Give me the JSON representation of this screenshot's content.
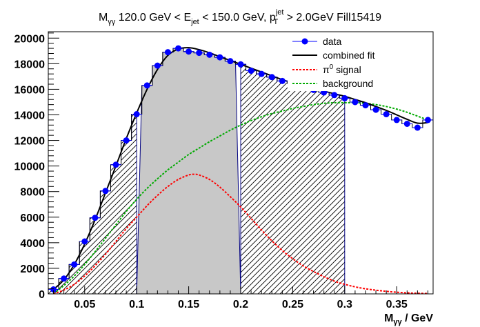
{
  "chart_data": {
    "type": "scatter",
    "title": {
      "m": "M",
      "m_sub": "γγ",
      "part1": " 120.0 GeV < E",
      "e_sub": "jet",
      "part2": " < 150.0 GeV, p",
      "pt_sup": "jet",
      "pt_sub": "T",
      "part3": " > 2.0GeV Fill15419"
    },
    "xlabel": {
      "m": "M",
      "sub": "γγ",
      "rest": " / GeV"
    },
    "ylabel": "",
    "xlim": [
      0.015,
      0.385
    ],
    "ylim": [
      0,
      20500
    ],
    "x_ticks": [
      0.05,
      0.1,
      0.15,
      0.2,
      0.25,
      0.3,
      0.35
    ],
    "x_tick_labels": [
      "0.05",
      "0.1",
      "0.15",
      "0.2",
      "0.25",
      "0.3",
      "0.35"
    ],
    "y_ticks": [
      0,
      2000,
      4000,
      6000,
      8000,
      10000,
      12000,
      14000,
      16000,
      18000,
      20000
    ],
    "y_tick_labels": [
      "0",
      "2000",
      "4000",
      "6000",
      "8000",
      "10000",
      "12000",
      "14000",
      "16000",
      "18000",
      "20000"
    ],
    "legend_position": "top-right",
    "legend": [
      {
        "label": "data",
        "style": "marker",
        "color": "#0000ff"
      },
      {
        "label": "combined fit",
        "style": "line",
        "color": "#000000"
      },
      {
        "label_main": "π",
        "label_sup": "0",
        "label_rest": " signal",
        "style": "dashed",
        "color": "#ff0000"
      },
      {
        "label": "background",
        "style": "dashed",
        "color": "#00aa00"
      }
    ],
    "histogram": {
      "bin_width": 0.01,
      "bin_centers": [
        0.02,
        0.03,
        0.04,
        0.05,
        0.06,
        0.07,
        0.08,
        0.09,
        0.1,
        0.11,
        0.12,
        0.13,
        0.14,
        0.15,
        0.16,
        0.17,
        0.18,
        0.19,
        0.2,
        0.21,
        0.22,
        0.23,
        0.24,
        0.25,
        0.26,
        0.27,
        0.28,
        0.29,
        0.3,
        0.31,
        0.32,
        0.33,
        0.34,
        0.35,
        0.36,
        0.37,
        0.38
      ],
      "values": [
        350,
        1200,
        2300,
        4100,
        5950,
        8050,
        10100,
        12000,
        14050,
        16300,
        17850,
        18900,
        19200,
        18950,
        18850,
        18700,
        18500,
        18200,
        17950,
        17450,
        17200,
        16950,
        16650,
        16450,
        16100,
        15950,
        15750,
        15550,
        15300,
        15000,
        14750,
        14400,
        14050,
        13600,
        13300,
        13000,
        13600
      ],
      "signal_window": [
        0.1,
        0.2
      ],
      "sideband_windows": [
        [
          0.015,
          0.1
        ],
        [
          0.2,
          0.3
        ]
      ],
      "window_fill": "#c8c8c8",
      "window_edge": "#000080"
    },
    "series": [
      {
        "name": "data",
        "type": "markers",
        "color": "#0000ff",
        "x": [
          0.02,
          0.03,
          0.04,
          0.05,
          0.06,
          0.07,
          0.08,
          0.09,
          0.1,
          0.11,
          0.12,
          0.13,
          0.14,
          0.15,
          0.16,
          0.17,
          0.18,
          0.19,
          0.2,
          0.21,
          0.22,
          0.23,
          0.24,
          0.25,
          0.26,
          0.27,
          0.28,
          0.29,
          0.3,
          0.31,
          0.32,
          0.33,
          0.34,
          0.35,
          0.36,
          0.37,
          0.38
        ],
        "y": [
          350,
          1200,
          2300,
          4100,
          5950,
          8050,
          10100,
          12000,
          14050,
          16300,
          17850,
          18900,
          19200,
          18950,
          18850,
          18700,
          18500,
          18200,
          17950,
          17450,
          17200,
          16950,
          16650,
          16450,
          16100,
          15950,
          15750,
          15550,
          15300,
          15000,
          14750,
          14400,
          14050,
          13600,
          13300,
          13000,
          13600
        ]
      },
      {
        "name": "combined fit",
        "type": "line",
        "color": "#000000",
        "x": [
          0.02,
          0.03,
          0.04,
          0.05,
          0.06,
          0.07,
          0.08,
          0.09,
          0.1,
          0.11,
          0.12,
          0.13,
          0.14,
          0.15,
          0.16,
          0.17,
          0.18,
          0.19,
          0.2,
          0.21,
          0.22,
          0.23,
          0.24,
          0.25,
          0.26,
          0.27,
          0.28,
          0.29,
          0.3,
          0.31,
          0.32,
          0.33,
          0.34,
          0.35,
          0.36,
          0.37,
          0.38
        ],
        "y": [
          350,
          1100,
          2300,
          3900,
          5800,
          7900,
          10000,
          12150,
          14150,
          16000,
          17550,
          18650,
          19150,
          19250,
          19100,
          18850,
          18550,
          18250,
          17950,
          17650,
          17350,
          17050,
          16750,
          16500,
          16250,
          16050,
          15850,
          15650,
          15450,
          15200,
          14950,
          14650,
          14350,
          14000,
          13650,
          13350,
          13400
        ]
      },
      {
        "name_main": "π",
        "name_sup": "0",
        "name_rest": " signal",
        "type": "dashed-line",
        "color": "#ff0000",
        "x": [
          0.02,
          0.03,
          0.04,
          0.05,
          0.06,
          0.07,
          0.08,
          0.09,
          0.1,
          0.11,
          0.12,
          0.13,
          0.14,
          0.15,
          0.155,
          0.16,
          0.17,
          0.18,
          0.19,
          0.2,
          0.21,
          0.22,
          0.23,
          0.24,
          0.25,
          0.26,
          0.27,
          0.28,
          0.29,
          0.3,
          0.31,
          0.32,
          0.33,
          0.34,
          0.35,
          0.36,
          0.37,
          0.38
        ],
        "y": [
          0,
          300,
          750,
          1400,
          2200,
          3100,
          4100,
          5100,
          6000,
          6900,
          7700,
          8400,
          8950,
          9300,
          9350,
          9300,
          8950,
          8350,
          7600,
          6800,
          5900,
          5000,
          4150,
          3400,
          2750,
          2200,
          1750,
          1350,
          1000,
          750,
          550,
          400,
          290,
          200,
          130,
          80,
          50,
          30
        ]
      },
      {
        "name": "background",
        "type": "dashed-line",
        "color": "#00aa00",
        "x": [
          0.02,
          0.03,
          0.04,
          0.05,
          0.06,
          0.07,
          0.08,
          0.09,
          0.1,
          0.11,
          0.12,
          0.13,
          0.14,
          0.15,
          0.16,
          0.17,
          0.18,
          0.19,
          0.2,
          0.21,
          0.22,
          0.23,
          0.24,
          0.25,
          0.26,
          0.27,
          0.28,
          0.29,
          0.3,
          0.31,
          0.32,
          0.33,
          0.34,
          0.35,
          0.36,
          0.37,
          0.38
        ],
        "y": [
          0,
          650,
          1400,
          2300,
          3300,
          4350,
          5400,
          6450,
          7400,
          8250,
          9000,
          9700,
          10300,
          10900,
          11400,
          11900,
          12350,
          12800,
          13200,
          13550,
          13850,
          14100,
          14300,
          14500,
          14650,
          14800,
          14900,
          14950,
          14950,
          14950,
          14900,
          14800,
          14650,
          14450,
          14200,
          13900,
          13600
        ]
      }
    ]
  }
}
